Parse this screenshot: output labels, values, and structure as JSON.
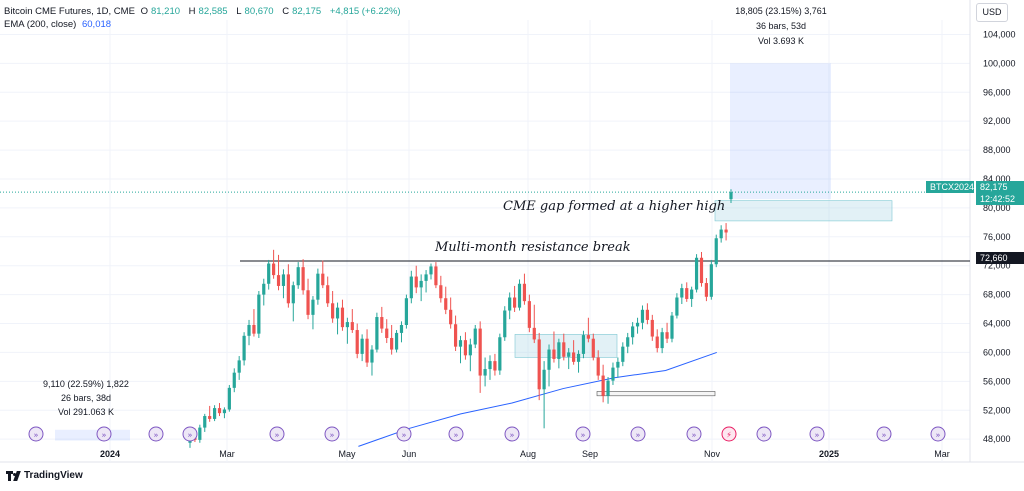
{
  "header": {
    "symbol_title": "Bitcoin CME Futures, 1D, CME",
    "open_label": "O",
    "open": "81,210",
    "high_label": "H",
    "high": "82,585",
    "low_label": "L",
    "low": "80,670",
    "close_label": "C",
    "close": "82,175",
    "change": "+4,815 (+6.22%)",
    "ema_label": "EMA (200, close)",
    "ema_value": "60,018"
  },
  "currency_button": "USD",
  "annotations": {
    "gap": "CME gap formed at a higher high",
    "resistance": "Multi-month resistance break"
  },
  "measure_right": {
    "line1": "18,805 (23.15%) 3,761",
    "line2": "36 bars, 53d",
    "line3": "Vol 3.693 K"
  },
  "measure_left": {
    "line1": "9,110 (22.59%) 1,822",
    "line2": "26 bars, 38d",
    "line3": "Vol 291.063 K"
  },
  "price_tags": {
    "symbol": "BTCX2024",
    "last": "82,175",
    "countdown": "12:42:52",
    "resistance_level": "72,660"
  },
  "colors": {
    "up": "#26a69a",
    "down": "#ef5350",
    "ema": "#2962ff",
    "measure": "#2962ff"
  },
  "brand": "TradingView",
  "chart_data": {
    "type": "candlestick",
    "title": "Bitcoin CME Futures, 1D, CME",
    "y_axis_ticks": [
      "104,000",
      "100,000",
      "96,000",
      "92,000",
      "88,000",
      "84,000",
      "80,000",
      "76,000",
      "72,000",
      "68,000",
      "64,000",
      "60,000",
      "56,000",
      "52,000",
      "48,000"
    ],
    "ylim": [
      46500,
      106000
    ],
    "x_axis_ticks": [
      "2024",
      "Mar",
      "May",
      "Jun",
      "Aug",
      "Sep",
      "Nov",
      "2025",
      "Mar"
    ],
    "series": [
      {
        "name": "EMA (200, close)",
        "points": [
          [
            0.35,
            47000
          ],
          [
            0.4,
            49500
          ],
          [
            0.45,
            51500
          ],
          [
            0.5,
            53000
          ],
          [
            0.55,
            55000
          ],
          [
            0.6,
            56500
          ],
          [
            0.65,
            57500
          ],
          [
            0.7,
            60000
          ]
        ]
      }
    ],
    "candles": [
      {
        "o": 47500,
        "h": 48800,
        "l": 46800,
        "c": 48400
      },
      {
        "o": 48400,
        "h": 49500,
        "l": 47600,
        "c": 47900
      },
      {
        "o": 47900,
        "h": 50000,
        "l": 47500,
        "c": 49600
      },
      {
        "o": 49600,
        "h": 51500,
        "l": 49000,
        "c": 51200
      },
      {
        "o": 51200,
        "h": 52600,
        "l": 50400,
        "c": 50800
      },
      {
        "o": 50800,
        "h": 52700,
        "l": 50500,
        "c": 52300
      },
      {
        "o": 52300,
        "h": 53000,
        "l": 51200,
        "c": 51600
      },
      {
        "o": 51600,
        "h": 52400,
        "l": 50900,
        "c": 52100
      },
      {
        "o": 52100,
        "h": 55500,
        "l": 51800,
        "c": 55100
      },
      {
        "o": 55100,
        "h": 57800,
        "l": 54500,
        "c": 57200
      },
      {
        "o": 57200,
        "h": 59500,
        "l": 56200,
        "c": 58900
      },
      {
        "o": 58900,
        "h": 62800,
        "l": 58200,
        "c": 62300
      },
      {
        "o": 62300,
        "h": 64500,
        "l": 61000,
        "c": 63800
      },
      {
        "o": 63800,
        "h": 66000,
        "l": 62200,
        "c": 62600
      },
      {
        "o": 62600,
        "h": 68500,
        "l": 62000,
        "c": 68000
      },
      {
        "o": 68000,
        "h": 70200,
        "l": 66500,
        "c": 69500
      },
      {
        "o": 69500,
        "h": 72800,
        "l": 68700,
        "c": 72300
      },
      {
        "o": 72300,
        "h": 74200,
        "l": 70200,
        "c": 70700
      },
      {
        "o": 70700,
        "h": 73500,
        "l": 68600,
        "c": 69200
      },
      {
        "o": 69200,
        "h": 71500,
        "l": 67500,
        "c": 70800
      },
      {
        "o": 70800,
        "h": 72200,
        "l": 66200,
        "c": 66800
      },
      {
        "o": 66800,
        "h": 69800,
        "l": 64300,
        "c": 69300
      },
      {
        "o": 69300,
        "h": 72500,
        "l": 68800,
        "c": 71800
      },
      {
        "o": 71800,
        "h": 72900,
        "l": 68000,
        "c": 68600
      },
      {
        "o": 68600,
        "h": 70200,
        "l": 64600,
        "c": 65200
      },
      {
        "o": 65200,
        "h": 67800,
        "l": 63200,
        "c": 67300
      },
      {
        "o": 67300,
        "h": 71600,
        "l": 66600,
        "c": 70900
      },
      {
        "o": 70900,
        "h": 72700,
        "l": 68900,
        "c": 69300
      },
      {
        "o": 69300,
        "h": 70500,
        "l": 66300,
        "c": 66800
      },
      {
        "o": 66800,
        "h": 68500,
        "l": 64100,
        "c": 64700
      },
      {
        "o": 64700,
        "h": 66900,
        "l": 62500,
        "c": 66200
      },
      {
        "o": 66200,
        "h": 67300,
        "l": 63000,
        "c": 63500
      },
      {
        "o": 63500,
        "h": 64800,
        "l": 61200,
        "c": 64200
      },
      {
        "o": 64200,
        "h": 66000,
        "l": 62700,
        "c": 63100
      },
      {
        "o": 63100,
        "h": 64000,
        "l": 59200,
        "c": 59800
      },
      {
        "o": 59800,
        "h": 62500,
        "l": 58800,
        "c": 61900
      },
      {
        "o": 61900,
        "h": 63200,
        "l": 58000,
        "c": 58600
      },
      {
        "o": 58600,
        "h": 61000,
        "l": 56800,
        "c": 60400
      },
      {
        "o": 60400,
        "h": 65500,
        "l": 60000,
        "c": 64900
      },
      {
        "o": 64900,
        "h": 66300,
        "l": 62700,
        "c": 63300
      },
      {
        "o": 63300,
        "h": 64600,
        "l": 61300,
        "c": 62000
      },
      {
        "o": 62000,
        "h": 63800,
        "l": 59700,
        "c": 60400
      },
      {
        "o": 60400,
        "h": 63100,
        "l": 60000,
        "c": 62700
      },
      {
        "o": 62700,
        "h": 64300,
        "l": 61400,
        "c": 63800
      },
      {
        "o": 63800,
        "h": 68000,
        "l": 63300,
        "c": 67500
      },
      {
        "o": 67500,
        "h": 71300,
        "l": 66800,
        "c": 70500
      },
      {
        "o": 70500,
        "h": 72000,
        "l": 68200,
        "c": 69000
      },
      {
        "o": 69000,
        "h": 70800,
        "l": 67100,
        "c": 69900
      },
      {
        "o": 69900,
        "h": 71400,
        "l": 68300,
        "c": 70800
      },
      {
        "o": 70800,
        "h": 72300,
        "l": 70100,
        "c": 71900
      },
      {
        "o": 71900,
        "h": 72500,
        "l": 68900,
        "c": 69300
      },
      {
        "o": 69300,
        "h": 70600,
        "l": 66900,
        "c": 67500
      },
      {
        "o": 67500,
        "h": 69100,
        "l": 65300,
        "c": 65900
      },
      {
        "o": 65900,
        "h": 67600,
        "l": 63300,
        "c": 63900
      },
      {
        "o": 63900,
        "h": 65100,
        "l": 60200,
        "c": 60800
      },
      {
        "o": 60800,
        "h": 62300,
        "l": 58500,
        "c": 61700
      },
      {
        "o": 61700,
        "h": 62800,
        "l": 59000,
        "c": 59600
      },
      {
        "o": 59600,
        "h": 61900,
        "l": 57400,
        "c": 61100
      },
      {
        "o": 61100,
        "h": 63800,
        "l": 60600,
        "c": 63300
      },
      {
        "o": 63300,
        "h": 64300,
        "l": 54400,
        "c": 56800
      },
      {
        "o": 56800,
        "h": 59300,
        "l": 55300,
        "c": 57700
      },
      {
        "o": 57700,
        "h": 59600,
        "l": 56200,
        "c": 58800
      },
      {
        "o": 58800,
        "h": 59800,
        "l": 56800,
        "c": 57500
      },
      {
        "o": 57500,
        "h": 62600,
        "l": 56900,
        "c": 62100
      },
      {
        "o": 62100,
        "h": 66400,
        "l": 61600,
        "c": 65800
      },
      {
        "o": 65800,
        "h": 68300,
        "l": 64600,
        "c": 67600
      },
      {
        "o": 67600,
        "h": 69200,
        "l": 65600,
        "c": 66200
      },
      {
        "o": 66200,
        "h": 70100,
        "l": 65800,
        "c": 69500
      },
      {
        "o": 69500,
        "h": 70900,
        "l": 66600,
        "c": 67100
      },
      {
        "o": 67100,
        "h": 68000,
        "l": 62800,
        "c": 63400
      },
      {
        "o": 63400,
        "h": 66600,
        "l": 61300,
        "c": 61800
      },
      {
        "o": 61800,
        "h": 62700,
        "l": 53400,
        "c": 54900
      },
      {
        "o": 54900,
        "h": 58800,
        "l": 49500,
        "c": 57600
      },
      {
        "o": 57600,
        "h": 61100,
        "l": 55300,
        "c": 60400
      },
      {
        "o": 60400,
        "h": 62900,
        "l": 58600,
        "c": 59100
      },
      {
        "o": 59100,
        "h": 61900,
        "l": 57800,
        "c": 61400
      },
      {
        "o": 61400,
        "h": 62600,
        "l": 58900,
        "c": 59400
      },
      {
        "o": 59400,
        "h": 60600,
        "l": 57700,
        "c": 60000
      },
      {
        "o": 60000,
        "h": 61700,
        "l": 58300,
        "c": 58700
      },
      {
        "o": 58700,
        "h": 60300,
        "l": 57200,
        "c": 59800
      },
      {
        "o": 59800,
        "h": 63000,
        "l": 59200,
        "c": 62400
      },
      {
        "o": 62400,
        "h": 64800,
        "l": 61400,
        "c": 61900
      },
      {
        "o": 61900,
        "h": 62600,
        "l": 58900,
        "c": 59300
      },
      {
        "o": 59300,
        "h": 60300,
        "l": 56200,
        "c": 56800
      },
      {
        "o": 56800,
        "h": 58300,
        "l": 53100,
        "c": 54000
      },
      {
        "o": 54000,
        "h": 56600,
        "l": 52900,
        "c": 56100
      },
      {
        "o": 56100,
        "h": 58600,
        "l": 55500,
        "c": 57900
      },
      {
        "o": 57900,
        "h": 59300,
        "l": 56500,
        "c": 58700
      },
      {
        "o": 58700,
        "h": 61400,
        "l": 58100,
        "c": 60800
      },
      {
        "o": 60800,
        "h": 62700,
        "l": 59900,
        "c": 62100
      },
      {
        "o": 62100,
        "h": 64200,
        "l": 61100,
        "c": 63600
      },
      {
        "o": 63600,
        "h": 64800,
        "l": 62600,
        "c": 64100
      },
      {
        "o": 64100,
        "h": 66500,
        "l": 63200,
        "c": 65900
      },
      {
        "o": 65900,
        "h": 66800,
        "l": 63900,
        "c": 64500
      },
      {
        "o": 64500,
        "h": 65200,
        "l": 61600,
        "c": 62200
      },
      {
        "o": 62200,
        "h": 63200,
        "l": 60000,
        "c": 60600
      },
      {
        "o": 60600,
        "h": 63400,
        "l": 59900,
        "c": 62800
      },
      {
        "o": 62800,
        "h": 64100,
        "l": 61300,
        "c": 61900
      },
      {
        "o": 61900,
        "h": 65600,
        "l": 61400,
        "c": 65100
      },
      {
        "o": 65100,
        "h": 68200,
        "l": 64700,
        "c": 67600
      },
      {
        "o": 67600,
        "h": 69500,
        "l": 66700,
        "c": 68900
      },
      {
        "o": 68900,
        "h": 69700,
        "l": 67000,
        "c": 67400
      },
      {
        "o": 67400,
        "h": 69100,
        "l": 66300,
        "c": 68700
      },
      {
        "o": 68700,
        "h": 73600,
        "l": 68300,
        "c": 73100
      },
      {
        "o": 73100,
        "h": 73900,
        "l": 69100,
        "c": 69600
      },
      {
        "o": 69600,
        "h": 70300,
        "l": 67100,
        "c": 67700
      },
      {
        "o": 67700,
        "h": 72800,
        "l": 67300,
        "c": 72200
      },
      {
        "o": 72200,
        "h": 76300,
        "l": 71800,
        "c": 75800
      },
      {
        "o": 75800,
        "h": 77600,
        "l": 75200,
        "c": 77000
      },
      {
        "o": 77000,
        "h": 77900,
        "l": 75500,
        "c": 76600
      },
      {
        "o": 81210,
        "h": 82585,
        "l": 80670,
        "c": 82175
      }
    ]
  }
}
